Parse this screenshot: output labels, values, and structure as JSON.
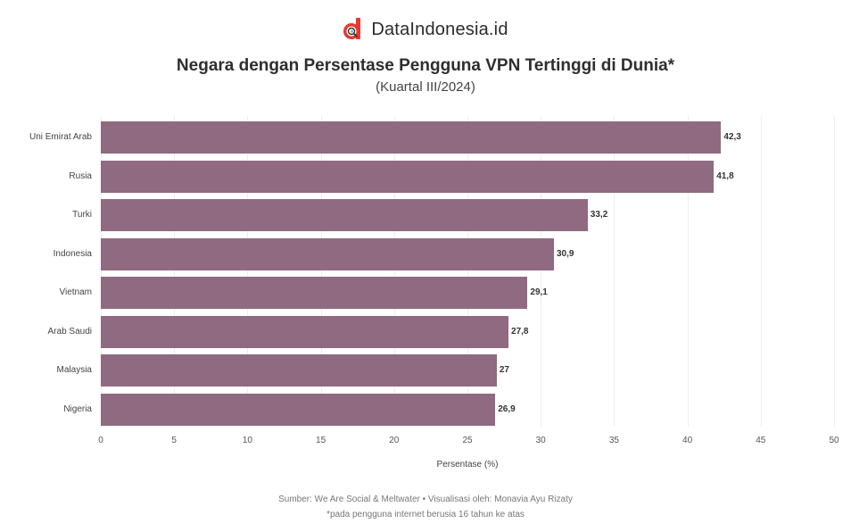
{
  "brand": {
    "name": "DataIndonesia.id",
    "logo_color": "#e53935"
  },
  "header": {
    "title": "Negara dengan Persentase Pengguna VPN Tertinggi di Dunia*",
    "subtitle": "(Kuartal III/2024)"
  },
  "chart_data": {
    "type": "bar",
    "orientation": "horizontal",
    "title": "Negara dengan Persentase Pengguna VPN Tertinggi di Dunia*",
    "subtitle": "(Kuartal III/2024)",
    "categories": [
      "Uni Emirat Arab",
      "Rusia",
      "Turki",
      "Indonesia",
      "Vietnam",
      "Arab Saudi",
      "Malaysia",
      "Nigeria"
    ],
    "values": [
      42.3,
      41.8,
      33.2,
      30.9,
      29.1,
      27.8,
      27,
      26.9
    ],
    "value_labels": [
      "42,3",
      "41,8",
      "33,2",
      "30,9",
      "29,1",
      "27,8",
      "27",
      "26,9"
    ],
    "xlabel": "Persentase (%)",
    "ylabel": "",
    "xlim": [
      0,
      50
    ],
    "xticks": [
      "0",
      "5",
      "10",
      "15",
      "20",
      "25",
      "30",
      "35",
      "40",
      "45",
      "50"
    ],
    "grid": true,
    "legend": null,
    "bar_color": "#8f6a80"
  },
  "footer": {
    "source": "Sumber: We Are Social & Meltwater • Visualisasi oleh: Monavia Ayu Rizaty",
    "note": "*pada pengguna internet berusia 16 tahun ke atas"
  }
}
